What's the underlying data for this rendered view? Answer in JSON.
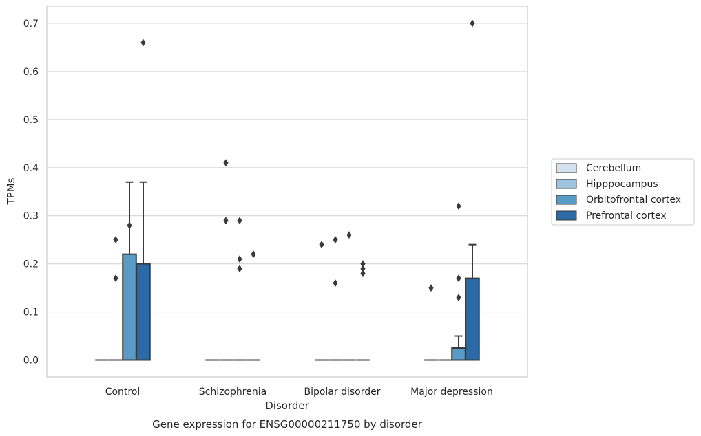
{
  "chart_data": {
    "type": "box",
    "title": "",
    "caption": "Gene expression for ENSG00000211750 by disorder",
    "xlabel": "Disorder",
    "ylabel": "TPMs",
    "ylim": [
      -0.035,
      0.735
    ],
    "yticks": [
      0.0,
      0.1,
      0.2,
      0.3,
      0.4,
      0.5,
      0.6,
      0.7
    ],
    "ytick_labels": [
      "0.0",
      "0.1",
      "0.2",
      "0.3",
      "0.4",
      "0.5",
      "0.6",
      "0.7"
    ],
    "grid": "horizontal",
    "legend_position": "right",
    "categories": [
      "Control",
      "Schizophrenia",
      "Bipolar disorder",
      "Major depression"
    ],
    "series": [
      {
        "name": "Cerebellum",
        "color": "#d4e2ef",
        "boxes": [
          {
            "category": "Control",
            "q1": 0,
            "median": 0,
            "q3": 0,
            "whisker_low": 0,
            "whisker_high": 0,
            "outliers": []
          },
          {
            "category": "Schizophrenia",
            "q1": 0,
            "median": 0,
            "q3": 0,
            "whisker_low": 0,
            "whisker_high": 0,
            "outliers": []
          },
          {
            "category": "Bipolar disorder",
            "q1": 0,
            "median": 0,
            "q3": 0,
            "whisker_low": 0,
            "whisker_high": 0,
            "outliers": [
              0.24
            ]
          },
          {
            "category": "Major depression",
            "q1": 0,
            "median": 0,
            "q3": 0,
            "whisker_low": 0,
            "whisker_high": 0,
            "outliers": [
              0.15
            ]
          }
        ]
      },
      {
        "name": "Hipppocampus",
        "color": "#9dc3de",
        "boxes": [
          {
            "category": "Control",
            "q1": 0,
            "median": 0,
            "q3": 0,
            "whisker_low": 0,
            "whisker_high": 0,
            "outliers": [
              0.17,
              0.25
            ]
          },
          {
            "category": "Schizophrenia",
            "q1": 0,
            "median": 0,
            "q3": 0,
            "whisker_low": 0,
            "whisker_high": 0,
            "outliers": [
              0.29,
              0.41
            ]
          },
          {
            "category": "Bipolar disorder",
            "q1": 0,
            "median": 0,
            "q3": 0,
            "whisker_low": 0,
            "whisker_high": 0,
            "outliers": [
              0.16,
              0.25
            ]
          },
          {
            "category": "Major depression",
            "q1": 0,
            "median": 0,
            "q3": 0,
            "whisker_low": 0,
            "whisker_high": 0,
            "outliers": []
          }
        ]
      },
      {
        "name": "Orbitofrontal cortex",
        "color": "#5a9ac6",
        "boxes": [
          {
            "category": "Control",
            "q1": 0,
            "median": 0,
            "q3": 0.22,
            "whisker_low": 0,
            "whisker_high": 0.37,
            "outliers": [
              0.28
            ]
          },
          {
            "category": "Schizophrenia",
            "q1": 0,
            "median": 0,
            "q3": 0,
            "whisker_low": 0,
            "whisker_high": 0,
            "outliers": [
              0.19,
              0.21,
              0.29
            ]
          },
          {
            "category": "Bipolar disorder",
            "q1": 0,
            "median": 0,
            "q3": 0,
            "whisker_low": 0,
            "whisker_high": 0,
            "outliers": [
              0.26
            ]
          },
          {
            "category": "Major depression",
            "q1": 0,
            "median": 0,
            "q3": 0.025,
            "whisker_low": 0,
            "whisker_high": 0.05,
            "outliers": [
              0.13,
              0.17,
              0.32
            ]
          }
        ]
      },
      {
        "name": "Prefrontal cortex",
        "color": "#2b6aa6",
        "boxes": [
          {
            "category": "Control",
            "q1": 0,
            "median": 0,
            "q3": 0.2,
            "whisker_low": 0,
            "whisker_high": 0.37,
            "outliers": [
              0.66
            ]
          },
          {
            "category": "Schizophrenia",
            "q1": 0,
            "median": 0,
            "q3": 0,
            "whisker_low": 0,
            "whisker_high": 0,
            "outliers": [
              0.22
            ]
          },
          {
            "category": "Bipolar disorder",
            "q1": 0,
            "median": 0,
            "q3": 0,
            "whisker_low": 0,
            "whisker_high": 0,
            "outliers": [
              0.18,
              0.19,
              0.2
            ]
          },
          {
            "category": "Major depression",
            "q1": 0,
            "median": 0,
            "q3": 0.17,
            "whisker_low": 0,
            "whisker_high": 0.24,
            "outliers": [
              0.7
            ]
          }
        ]
      }
    ]
  }
}
